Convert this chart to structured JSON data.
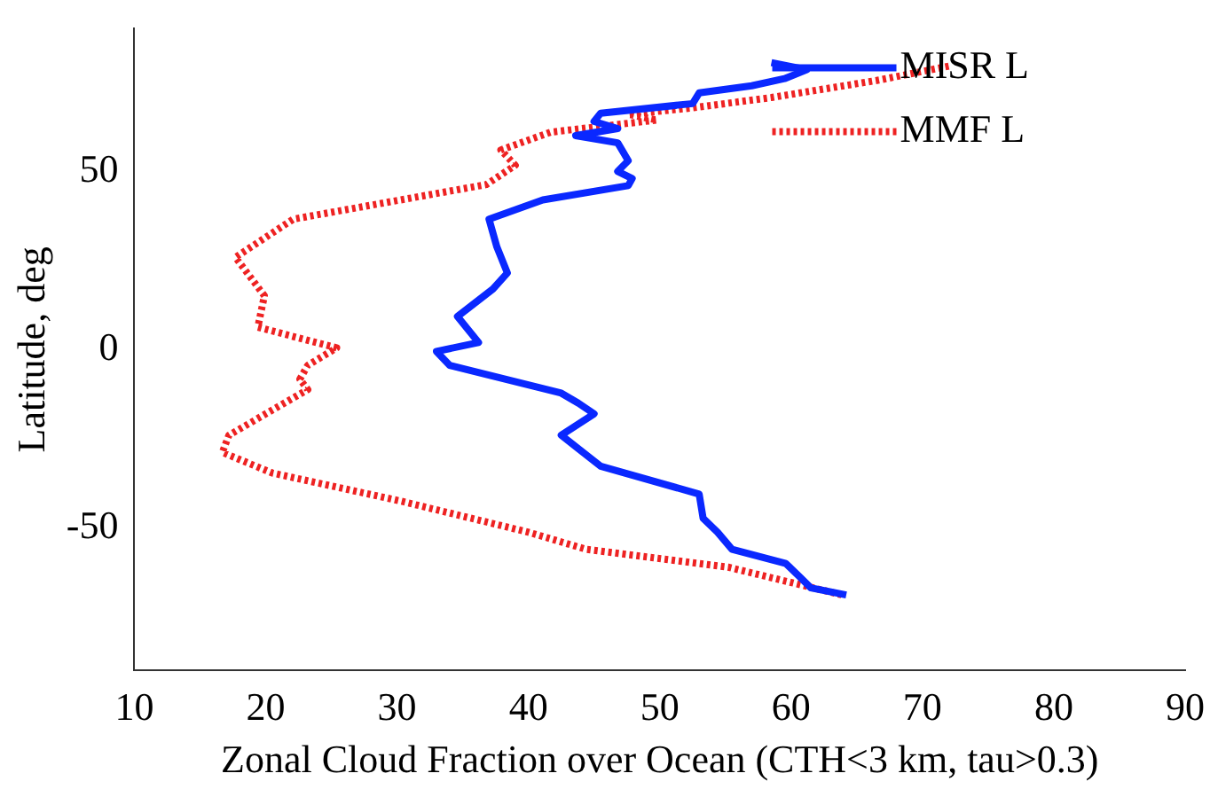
{
  "chart_data": {
    "type": "line",
    "xlabel": "Zonal Cloud Fraction over Ocean (CTH<3 km, tau>0.3)",
    "ylabel": "Latitude, deg",
    "xlim": [
      10,
      90
    ],
    "ylim": [
      -90,
      90
    ],
    "xticks": [
      10,
      20,
      30,
      40,
      50,
      60,
      70,
      80,
      90
    ],
    "yticks": [
      -50,
      0,
      50
    ],
    "grid": false,
    "legend": "top right",
    "series": [
      {
        "name": "MISR L",
        "color": "#0a28ff",
        "line_style": "solid",
        "x": [
          58.5,
          61.2,
          59.5,
          57,
          53,
          52.5,
          45.5,
          45,
          46.8,
          43.6,
          46.8,
          47.6,
          46.8,
          47.9,
          47.6,
          41.1,
          37,
          37.6,
          38.4,
          37.3,
          34.6,
          36.2,
          33,
          34,
          42.5,
          43.8,
          45,
          42.5,
          45.5,
          53,
          53.3,
          54.4,
          55.5,
          59.6,
          60.7,
          61.5,
          64.2
        ],
        "values": [
          80.5,
          78.5,
          76,
          74,
          72,
          69,
          66.3,
          64,
          62,
          60,
          58,
          53,
          50,
          48,
          46,
          42,
          36.6,
          28.8,
          21.5,
          17,
          9.3,
          2,
          -0.5,
          -4.4,
          -12.2,
          -15,
          -18,
          -24,
          -32.7,
          -40.5,
          -47.3,
          -51.2,
          -56,
          -60,
          -63.9,
          -66.8,
          -68.8
        ]
      },
      {
        "name": "MMF L",
        "color": "#ee2222",
        "line_style": "dotted",
        "x": [
          72,
          66.7,
          58.5,
          52.5,
          47.6,
          49.8,
          41.7,
          37.9,
          39,
          36.8,
          22.1,
          17.7,
          19.9,
          19.4,
          25.4,
          23.2,
          22.6,
          23.2,
          17.2,
          16.7,
          20.5,
          30.2,
          40,
          44.4,
          55.2,
          63.9
        ],
        "values": [
          79.5,
          75.6,
          70.7,
          67.8,
          66,
          64.4,
          61,
          56,
          51.7,
          46.3,
          36.6,
          25.9,
          15.1,
          6.3,
          0.5,
          -4.4,
          -8.3,
          -11.2,
          -24,
          -28.8,
          -34.6,
          -42.4,
          -51.2,
          -56,
          -61,
          -68.8
        ]
      }
    ]
  }
}
